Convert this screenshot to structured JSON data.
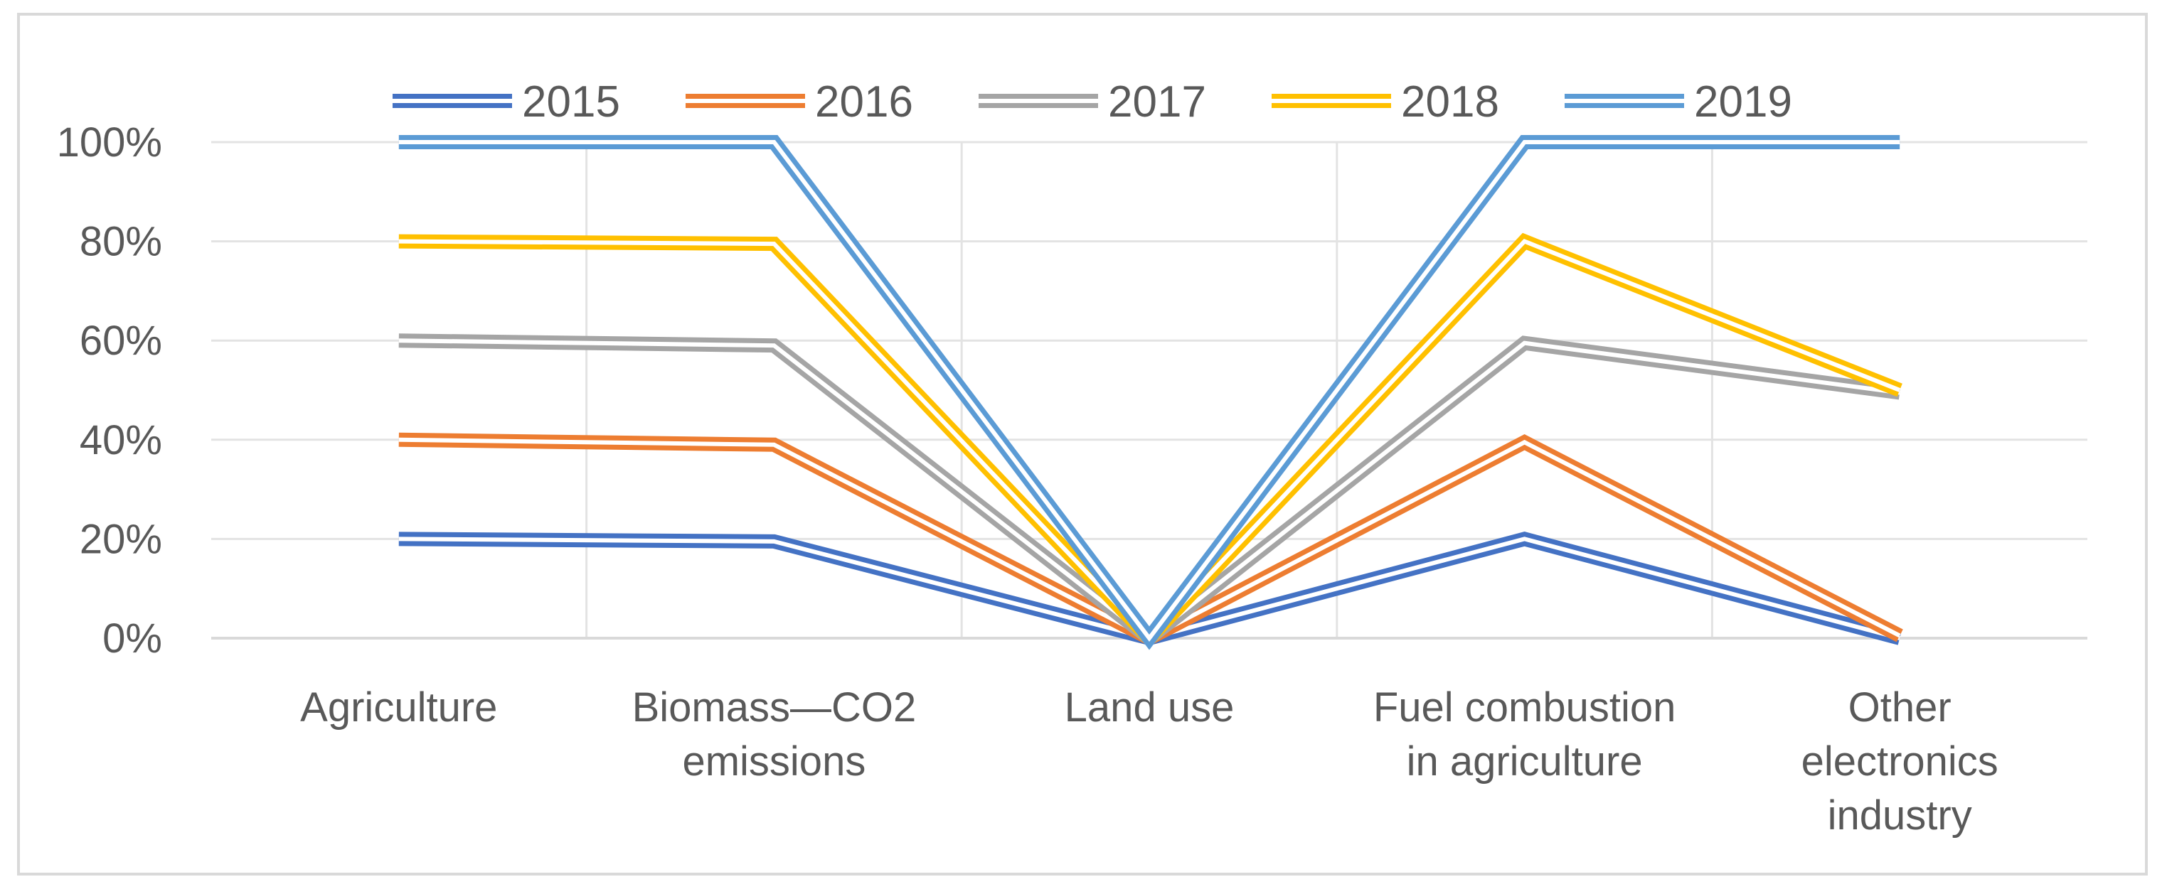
{
  "chart_data": {
    "type": "line",
    "title": "",
    "xlabel": "",
    "ylabel": "",
    "ylim": [
      0,
      100
    ],
    "y_ticks": [
      "0%",
      "20%",
      "40%",
      "60%",
      "80%",
      "100%"
    ],
    "y_tick_values": [
      0,
      20,
      40,
      60,
      80,
      100
    ],
    "grid": true,
    "legend_position": "top",
    "categories": [
      [
        "Agriculture"
      ],
      [
        "Biomass—CO2",
        "emissions"
      ],
      [
        "Land use"
      ],
      [
        "Fuel combustion",
        "in agriculture"
      ],
      [
        "Other",
        "electronics",
        "industry"
      ]
    ],
    "series": [
      {
        "name": "2015",
        "color": "#4472c4",
        "values": [
          20,
          19.5,
          0,
          20,
          0
        ]
      },
      {
        "name": "2016",
        "color": "#ed7d31",
        "values": [
          40,
          39,
          0,
          39.5,
          0.5
        ]
      },
      {
        "name": "2017",
        "color": "#a5a5a5",
        "values": [
          60,
          59,
          0,
          59.5,
          49.5
        ]
      },
      {
        "name": "2018",
        "color": "#ffc000",
        "values": [
          80,
          79.5,
          0,
          80,
          50
        ]
      },
      {
        "name": "2019",
        "color": "#5b9bd5",
        "values": [
          100,
          100,
          0,
          100,
          100
        ]
      }
    ]
  }
}
